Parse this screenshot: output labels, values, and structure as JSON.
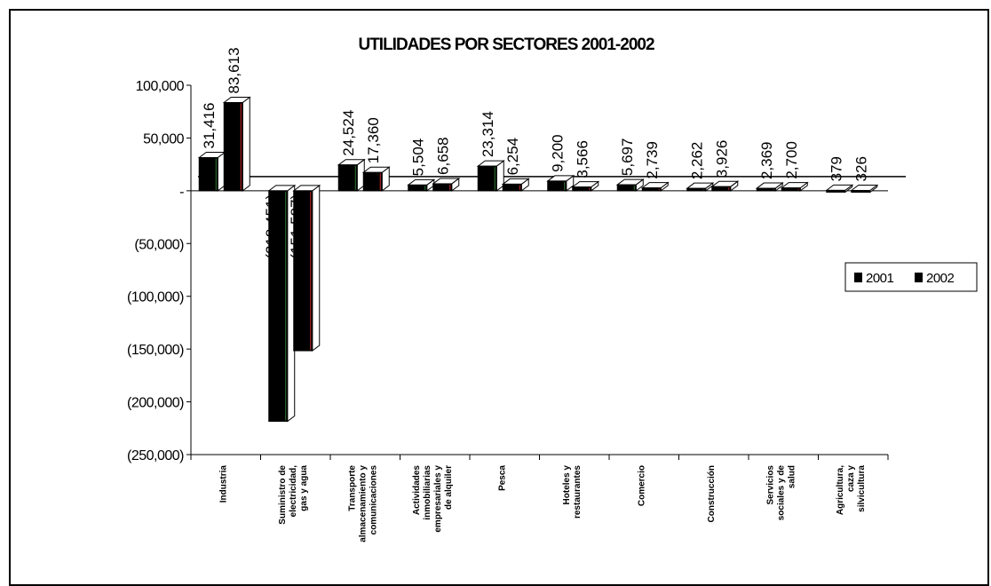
{
  "chart_data": {
    "type": "bar",
    "title": "UTILIDADES POR SECTORES 2001-2002",
    "xlabel": "",
    "ylabel": "",
    "ylim": [
      -250000,
      100000
    ],
    "yticks": [
      100000,
      50000,
      0,
      -50000,
      -100000,
      -150000,
      -200000,
      -250000
    ],
    "ytick_labels": [
      "100,000",
      "50,000",
      "-",
      "(50,000)",
      "(100,000)",
      "(150,000)",
      "(200,000)",
      "(250,000)"
    ],
    "categories": [
      "Industria",
      "Suministro de electricidad, gas y agua",
      "Transporte almacenamiento y comunicaciones",
      "Actividades inmobiliarias empresariales y de alquiler",
      "Pesca",
      "Hoteles y restaurantes",
      "Comercio",
      "Construcción",
      "Servicios sociales y de salud",
      "Agricultura, caza y silvicultura"
    ],
    "series": [
      {
        "name": "2001",
        "values": [
          31416,
          -218451,
          24524,
          5504,
          23314,
          9200,
          5697,
          2262,
          2369,
          379
        ],
        "labels": [
          "31,416",
          "(218,451)",
          "24,524",
          "5,504",
          "23,314",
          "9,200",
          "5,697",
          "2,262",
          "2,369",
          "379"
        ]
      },
      {
        "name": "2002",
        "values": [
          83613,
          -151587,
          17360,
          6658,
          6254,
          3566,
          2739,
          3926,
          2700,
          326
        ],
        "labels": [
          "83,613",
          "(151,587)",
          "17,360",
          "6,658",
          "6,254",
          "3,566",
          "2,739",
          "3,926",
          "2,700",
          "326"
        ]
      }
    ],
    "grid": false,
    "legend": "right",
    "colors": {
      "bar": "#000000",
      "bar_face_light": "#ffffff",
      "accent_2001": "#2e7d32",
      "accent_2002": "#c62828"
    }
  }
}
